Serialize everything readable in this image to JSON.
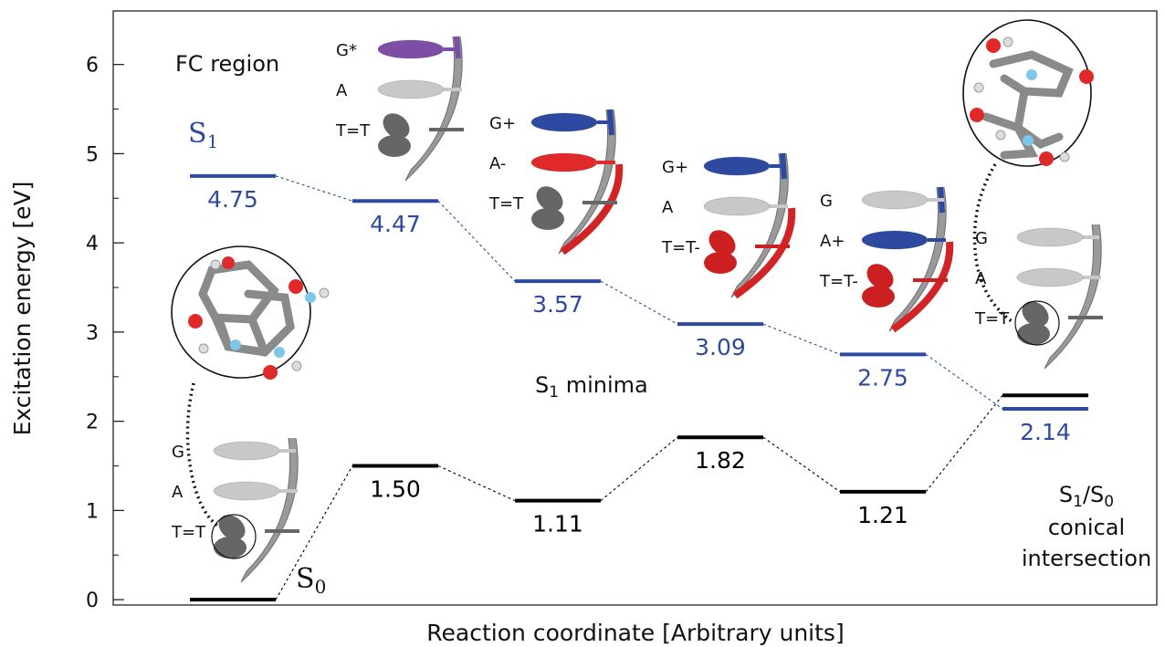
{
  "chart_data": {
    "type": "energy-level-diagram",
    "title": "",
    "xlabel": "Reaction coordinate [Arbitrary units]",
    "ylabel": "Excitation energy [eV]",
    "ylim": [
      -0.06,
      6.6
    ],
    "yticks": [
      0,
      1,
      2,
      3,
      4,
      5,
      6
    ],
    "grid": false,
    "series": [
      {
        "name": "S1",
        "color": "#2e4aa0",
        "points": [
          {
            "x": 1,
            "value": 4.75,
            "label": "4.75"
          },
          {
            "x": 2,
            "value": 4.47,
            "label": "4.47"
          },
          {
            "x": 3,
            "value": 3.57,
            "label": "3.57"
          },
          {
            "x": 4,
            "value": 3.09,
            "label": "3.09"
          },
          {
            "x": 5,
            "value": 2.75,
            "label": "2.75"
          },
          {
            "x": 6,
            "value": 2.14,
            "label": "2.14"
          }
        ]
      },
      {
        "name": "S0",
        "color": "#000000",
        "points": [
          {
            "x": 1,
            "value": 0.0,
            "label": ""
          },
          {
            "x": 2,
            "value": 1.5,
            "label": "1.50"
          },
          {
            "x": 3,
            "value": 1.11,
            "label": "1.11"
          },
          {
            "x": 4,
            "value": 1.82,
            "label": "1.82"
          },
          {
            "x": 5,
            "value": 1.21,
            "label": "1.21"
          },
          {
            "x": 6,
            "value": 2.29,
            "label": ""
          }
        ]
      }
    ],
    "annotations": {
      "fc_region": "FC region",
      "s1_label": "S",
      "s1_sub": "1",
      "s0_label": "S",
      "s0_sub": "0",
      "s1_minima_s": "S",
      "s1_minima_sub": "1",
      "s1_minima_rest": " minima",
      "ci_line1_a": "S",
      "ci_line1_sub1": "1",
      "ci_line1_slash": "/S",
      "ci_line1_sub0": "0",
      "ci_line2": "conical",
      "ci_line3": "intersection"
    },
    "dna_panels": [
      {
        "id": "s0",
        "labels": [
          "G",
          "A",
          "T=T"
        ],
        "colors": [
          "#c8c8c8",
          "#c8c8c8",
          "#666666"
        ],
        "circled": true
      },
      {
        "id": "fc",
        "labels": [
          "G*",
          "A",
          "T=T"
        ],
        "colors": [
          "#7d4ea6",
          "#c8c8c8",
          "#666666"
        ],
        "strand": "#7d4ea6"
      },
      {
        "id": "m1",
        "labels": [
          "G+",
          "A-",
          "T=T"
        ],
        "colors": [
          "#2e4aa0",
          "#e02a2a",
          "#666666"
        ],
        "strand": "mixed"
      },
      {
        "id": "m2",
        "labels": [
          "G+",
          "A",
          "T=T-"
        ],
        "colors": [
          "#2e4aa0",
          "#c8c8c8",
          "#cc2020"
        ],
        "strand": "mixed"
      },
      {
        "id": "m3",
        "labels": [
          "G",
          "A+",
          "T=T-"
        ],
        "colors": [
          "#c8c8c8",
          "#2e4aa0",
          "#cc2020"
        ],
        "strand": "mixed"
      },
      {
        "id": "ci",
        "labels": [
          "G",
          "A",
          "T=T"
        ],
        "colors": [
          "#c8c8c8",
          "#c8c8c8",
          "#666666"
        ],
        "circled": true
      }
    ]
  }
}
